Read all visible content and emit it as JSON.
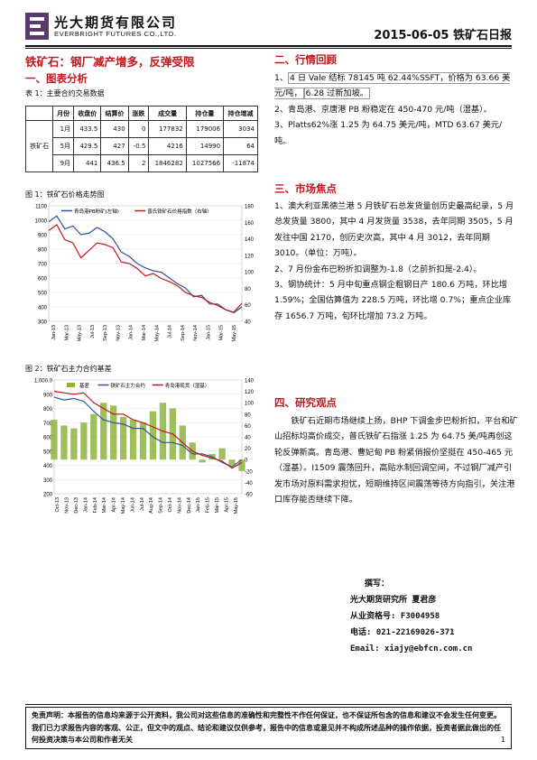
{
  "header": {
    "brand_cn": "光大期货有限公司",
    "brand_en": "EVERBRIGHT FUTURES CO.,LTD.",
    "report_title": "2015-06-05 铁矿石日报"
  },
  "main_title": "铁矿石：钢厂减产增多，反弹受限",
  "left": {
    "sec1": "一、图表分析",
    "table_caption": "表 1：主要合约交易数据",
    "table": {
      "headers": [
        "",
        "月份",
        "收盘价",
        "结算价",
        "涨跌",
        "成交量",
        "持仓量",
        "持仓增减"
      ],
      "product": "铁矿石",
      "rows": [
        [
          "1月",
          "433.5",
          "430",
          "0",
          "177832",
          "179006",
          "3034"
        ],
        [
          "5月",
          "429.5",
          "427",
          "-0.5",
          "4216",
          "14990",
          "64"
        ],
        [
          "9月",
          "441",
          "436.5",
          "2",
          "1846282",
          "1027566",
          "-11874"
        ]
      ]
    },
    "fig1_caption": "图 1：铁矿石价格走势图",
    "fig2_caption": "图 2：铁矿石主力合约基差"
  },
  "chart_data": [
    {
      "type": "line",
      "legend": [
        "青岛港PB粉矿(左轴)",
        "普氏铁矿石价格指数（右轴）"
      ],
      "y_left": {
        "ticks": [
          300,
          400,
          500,
          600,
          700,
          800,
          900,
          1000,
          1100
        ],
        "ylim": [
          300,
          1100
        ]
      },
      "y_right": {
        "ticks": [
          40,
          60,
          80,
          100,
          120,
          140,
          160,
          180
        ],
        "ylim": [
          40,
          180
        ]
      },
      "x_labels": [
        "Jan-13",
        "Mar-13",
        "May-13",
        "Jul-13",
        "Sep-13",
        "Nov-13",
        "Jan-14",
        "Mar-14",
        "May-14",
        "Jul-14",
        "Sep-14",
        "Nov-14",
        "Jan-15",
        "Mar-15",
        "May-15"
      ],
      "series": [
        {
          "name": "青岛港PB粉矿(左轴)",
          "color": "#2f5597",
          "values": [
            990,
            1030,
            940,
            960,
            900,
            910,
            950,
            920,
            870,
            780,
            750,
            700,
            670,
            650,
            640,
            600,
            560,
            530,
            470,
            480,
            420,
            420,
            380,
            360,
            400
          ]
        },
        {
          "name": "普氏铁矿石价格指数（右轴）",
          "color": "#c0161c",
          "values": [
            150,
            157,
            139,
            135,
            117,
            126,
            135,
            133,
            129,
            112,
            110,
            104,
            95,
            98,
            92,
            88,
            83,
            75,
            71,
            69,
            63,
            59,
            54,
            51,
            62
          ]
        }
      ]
    },
    {
      "type": "bar+line",
      "legend": [
        "基差",
        "铁矿石主力合约",
        "青岛港现货（湿基）"
      ],
      "y_left": {
        "ticks": [
          "200",
          "300",
          "400",
          "500",
          "600",
          "700",
          "800",
          "900",
          "1,000.0"
        ],
        "ylim": [
          200,
          1000
        ]
      },
      "y_right": {
        "ticks": [
          -60,
          -40,
          -20,
          0,
          20,
          40,
          60,
          80,
          100,
          120,
          140
        ],
        "ylim": [
          -60,
          140
        ]
      },
      "x_labels": [
        "Oct-13",
        "Nov-13",
        "Dec-13",
        "Jan-14",
        "Feb-14",
        "Mar-14",
        "Apr-14",
        "May-14",
        "Jun-14",
        "Jul-14",
        "Aug-14",
        "Sep-14",
        "Oct-14",
        "Nov-14",
        "Dec-14",
        "Jan-15",
        "Feb-15",
        "Mar-15",
        "Apr-15",
        "May-15"
      ],
      "series": [
        {
          "name": "基差",
          "color": "#8db43e",
          "values": [
            70,
            60,
            55,
            65,
            80,
            100,
            95,
            75,
            70,
            65,
            85,
            100,
            90,
            60,
            30,
            -5,
            10,
            20,
            -10,
            -20
          ]
        },
        {
          "name": "铁矿石主力合约",
          "color": "#2f5597",
          "values": [
            880,
            860,
            870,
            850,
            780,
            720,
            700,
            690,
            660,
            660,
            600,
            560,
            560,
            540,
            480,
            480,
            460,
            420,
            390,
            440
          ]
        },
        {
          "name": "青岛港现货（湿基）",
          "color": "#c0161c",
          "values": [
            920,
            910,
            900,
            910,
            840,
            800,
            760,
            760,
            720,
            700,
            670,
            640,
            620,
            560,
            500,
            470,
            450,
            430,
            380,
            420
          ]
        }
      ]
    }
  ],
  "right": {
    "sec2": "二、行情回顾",
    "p2_1_num": "1、",
    "p2_1_hl1": "4 日 Vale 结标 78145 吨 62.44%SSFT，价格为 63.66 美元/吨，",
    "p2_1_hl2": "6.28 过新加坡。",
    "p2_2": "2、青岛港、京唐港 PB 粉稳定在 450-470 元/吨（湿基）。",
    "p2_3": "3、Platts62%涨 1.25 为 64.75 美元/吨，MTD 63.67 美元/吨。",
    "sec3": "三、市场焦点",
    "p3_1": "1、澳大利亚黑德兰港 5 月铁矿石总发货量创历史最高纪录，5 月总发货量 3800，其中 4 月发货量 3538，去年同期 3505，5 月发往中国 2170，创历史次高，其中 4 月 3012，去年同期 3010。（单位：万吨）。",
    "p3_2": "2、7 月份金布巴粉折扣调整为-1.8（之前折扣是-2.4）。",
    "p3_3": "3、钢协统计：5 月中旬重点钢企粗钢日产 180.6 万吨，环比增 1.59%；全国估算值为 228.5 万吨，环比增 0.7%；重点企业库存 1656.7 万吨，旬环比增加 73.2 万吨。",
    "sec4": "四、研究观点",
    "p4": "铁矿石近期市场继续上扬，BHP 下调金步巴粉折扣，平台和矿山招标均高价成交，普氏铁矿石指涨 1.25 为 64.75 美/吨再创这轮反弹新高。青岛港、曹妃甸 PB 粉紧俏报价坚挺在 450-465 元（湿基）。I1509 震荡回升，高贴水制回调空间，不过钢厂减产引发市场对原料需求担忧，短期维持区间震荡等待方向指引，关注港口库存能否继续下降。"
  },
  "contact": {
    "label": "撰写：",
    "org": "光大期货研究所 夏君彦",
    "license": "从业资格号: F3004958",
    "phone": "电话: 021-22169026-371",
    "email": "Email: xiajy@ebfcn.com.cn"
  },
  "footer": {
    "text": "免责声明：本报告的信息均来源于公开资料，我公司对这些信息的准确性和完整性不作任何保证，也不保证所包含的信息和建议不会发生任何变更。我们已力求报告内容的客观、公正，但文中的观点、结论和建议仅供参考，报告中的信息或意见并不构成所述品种的操作依据，投资者据此做出的任何投资决策与本公司和作者无关",
    "page": "1"
  }
}
